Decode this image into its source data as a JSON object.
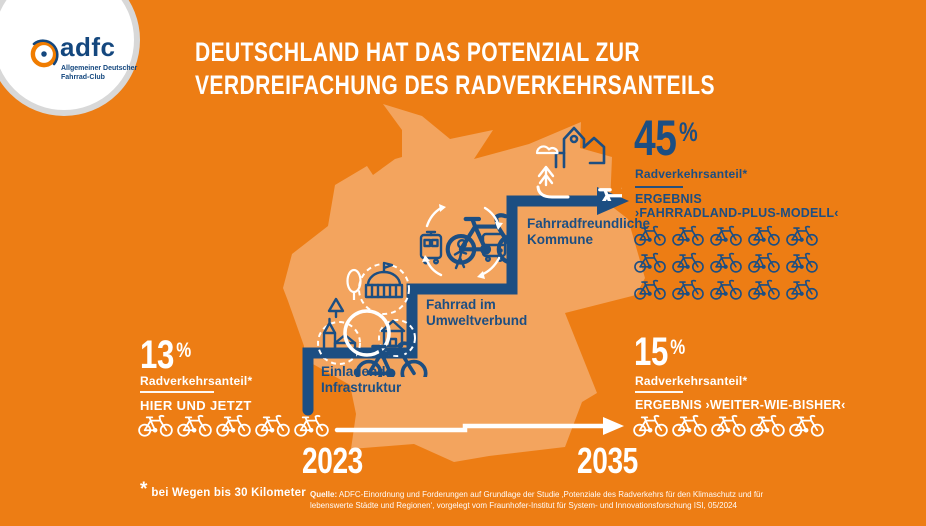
{
  "logo": {
    "name": "adfc",
    "tagline_line1": "Allgemeiner Deutscher",
    "tagline_line2": "Fahrrad-Club"
  },
  "title": {
    "line1": "DEUTSCHLAND HAT DAS POTENZIAL ZUR",
    "line2": "VERDREIFACHUNG DES RADVERKEHRSANTEILS"
  },
  "current_state": {
    "value": "13",
    "unit": "%",
    "label": "Radverkehrsanteil*",
    "caption": "HIER UND JETZT",
    "bike_count": 5
  },
  "scenario_plus": {
    "value": "45",
    "unit": "%",
    "label": "Radverkehrsanteil*",
    "result_line1": "ERGEBNIS",
    "result_line2": "›FAHRRADLAND-PLUS-MODELL‹",
    "bike_count": 15
  },
  "scenario_usual": {
    "value": "15",
    "unit": "%",
    "label": "Radverkehrsanteil*",
    "result": "ERGEBNIS ›WEITER-WIE-BISHER‹",
    "bike_count": 5
  },
  "steps": [
    {
      "line1": "Einladende",
      "line2": "Infrastruktur"
    },
    {
      "line1": "Fahrrad im",
      "line2": "Umweltverbund"
    },
    {
      "line1": "Fahrradfreundliche",
      "line2": "Kommune"
    }
  ],
  "timeline": {
    "start_year": "2023",
    "end_year": "2035"
  },
  "footnote": {
    "marker": "*",
    "text": "bei Wegen bis 30 Kilometer"
  },
  "source": {
    "prefix": "Quelle:",
    "text_line1": "ADFC-Einordnung und Forderungen auf Grundlage der Studie ‚Potenziale des Radverkehrs für den Klimaschutz und für",
    "text_line2": "lebenswerte Städte und Regionen‘, vorgelegt vom Fraunhofer-Institut für System- und Innovationsforschung ISI, 05/2024"
  },
  "colors": {
    "background_orange": "#ED7D14",
    "map_light_orange": "#F3A45E",
    "primary_blue": "#1C4E82",
    "white": "#FFFFFF",
    "logo_orange": "#F07C00",
    "logo_rim_gray": "#D8D8D8"
  },
  "icons": {
    "bike": "bicycle line icon",
    "tram": "tram line icon",
    "bus": "bus line icon",
    "pedestrian": "walking person icon",
    "infrastructure_cluster": "town hall, church, house, trees and bike in circle",
    "city": "city buildings with cloud, tree and bike",
    "staircase_arrow": "ascending steps ending in arrow",
    "timeline_arrow": "horizontal arrow from 2023 to 2035"
  }
}
